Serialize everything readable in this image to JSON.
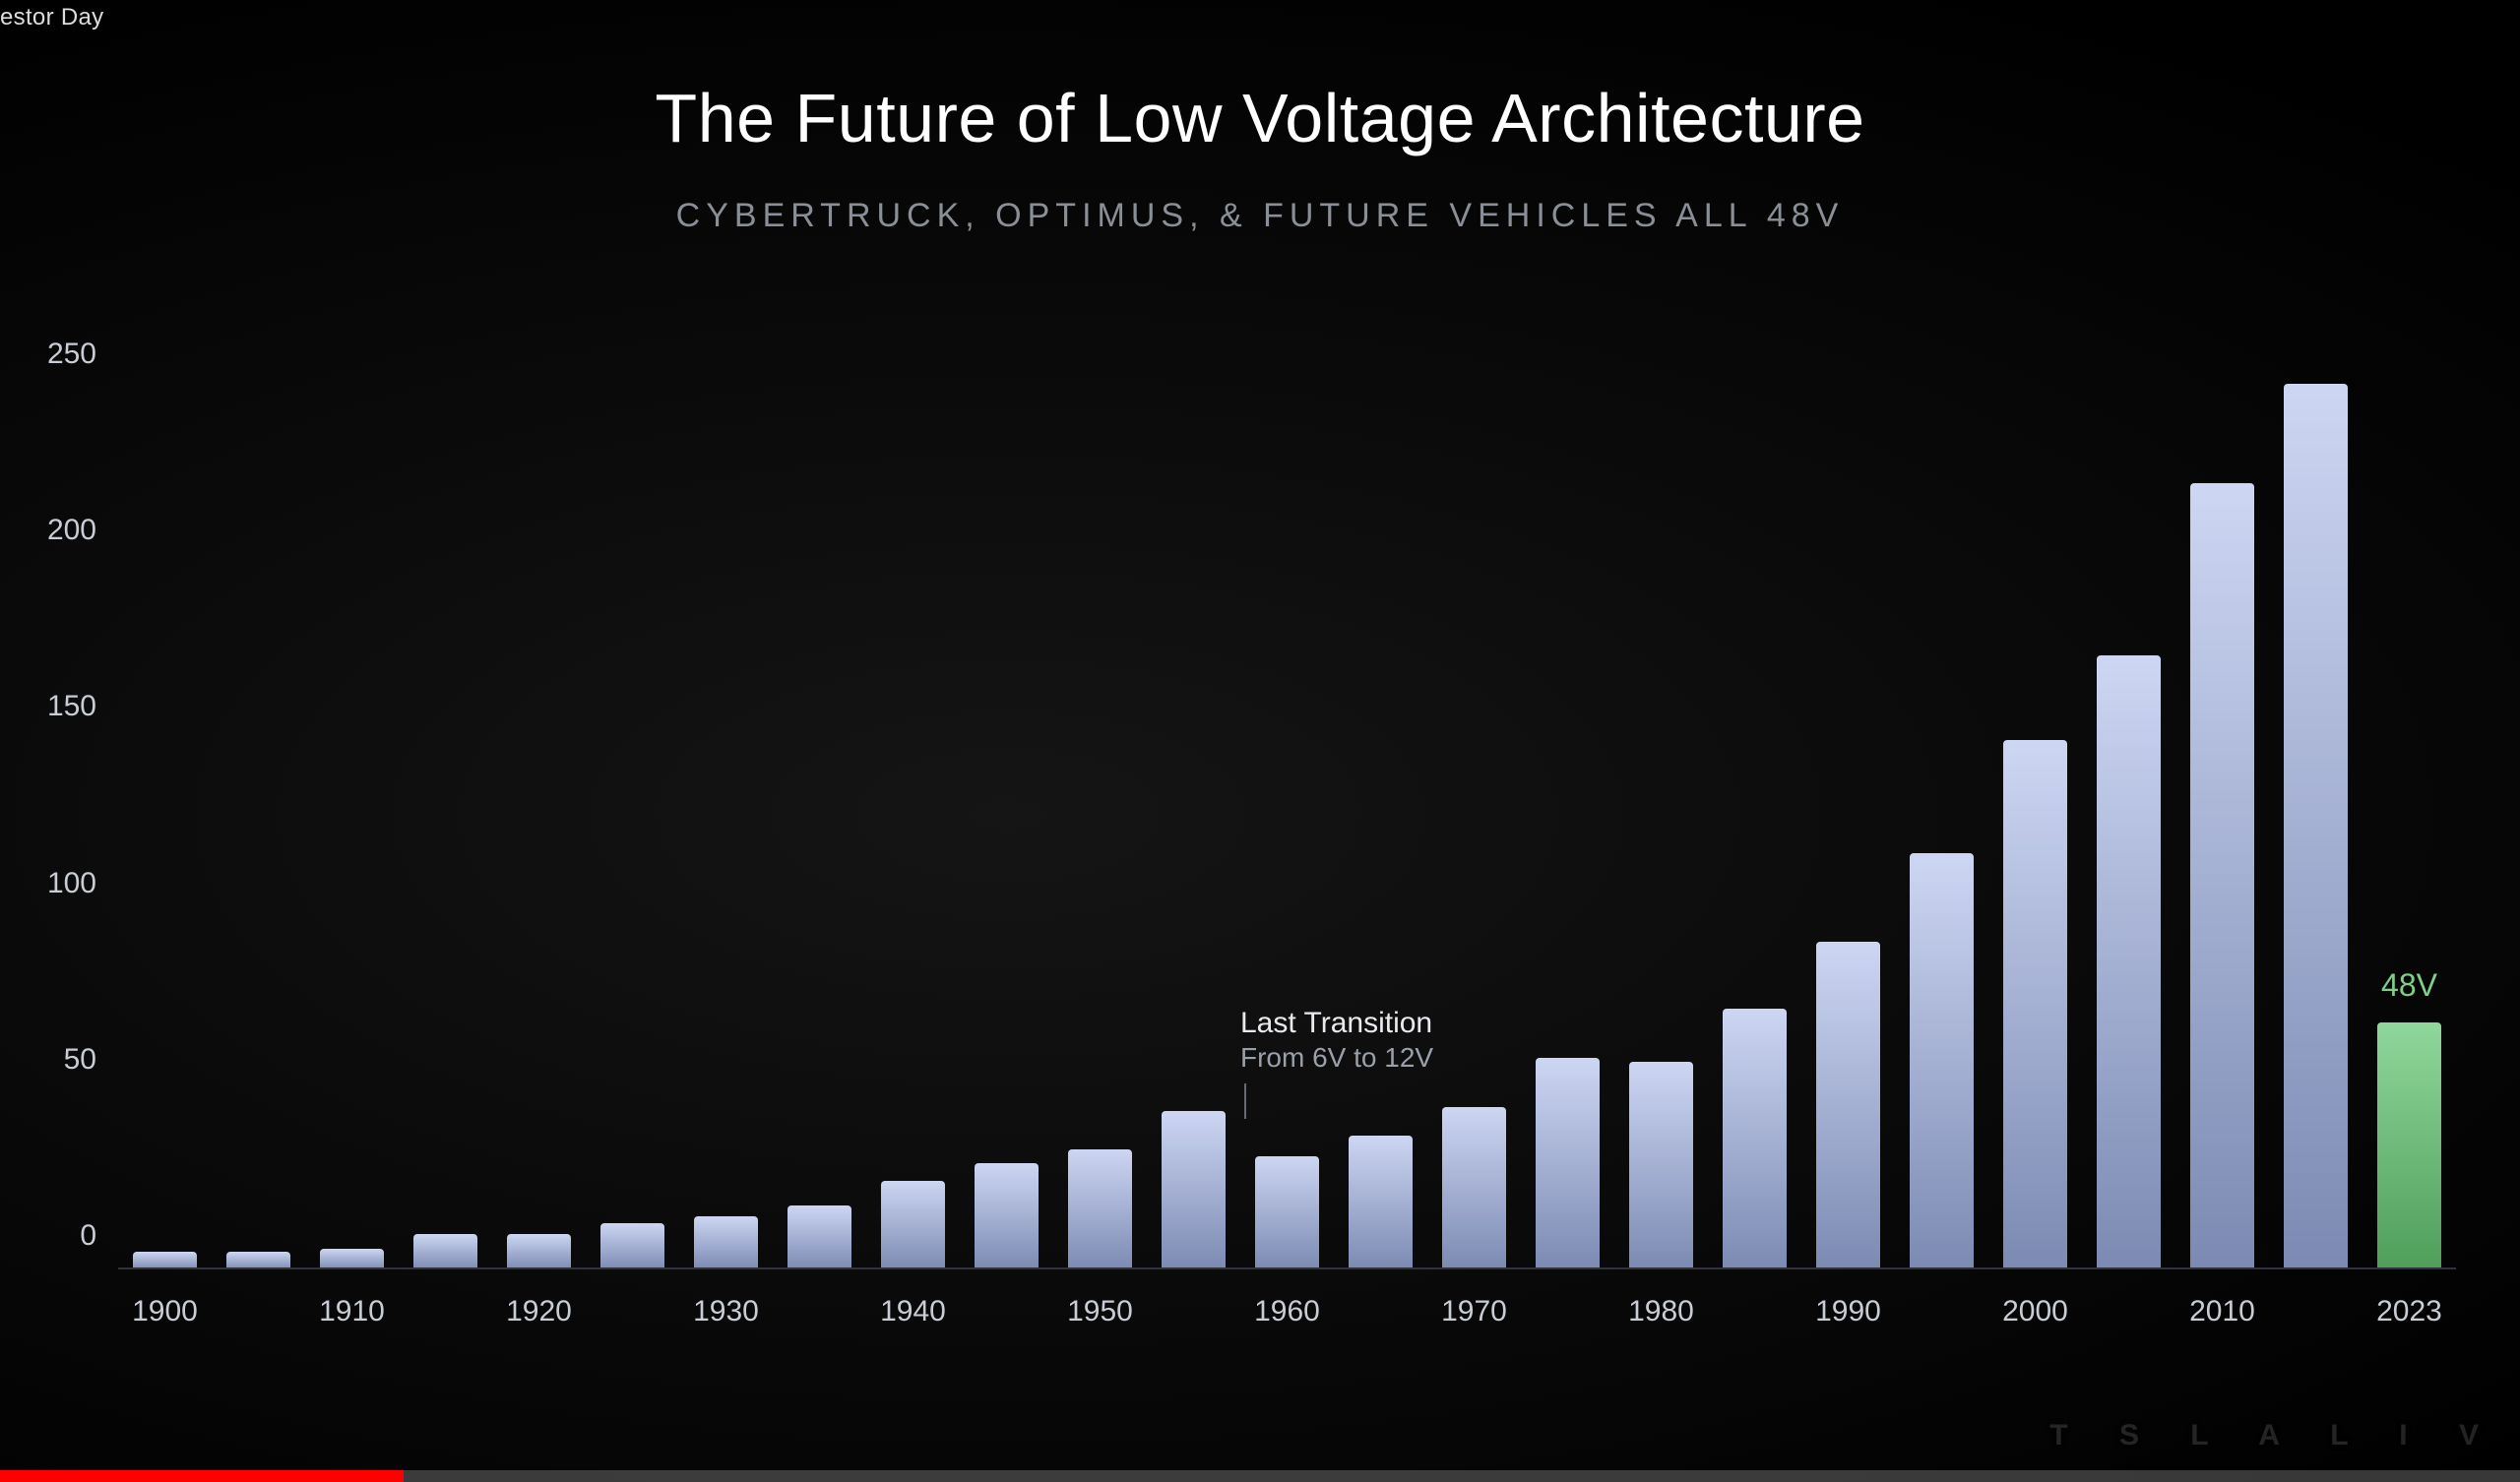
{
  "topbar": {
    "title_fragment": "estor Day"
  },
  "slide": {
    "title": "The Future of Low Voltage Architecture",
    "subtitle": "CYBERTRUCK, OPTIMUS, & FUTURE VEHICLES ALL 48V",
    "title_color": "#ffffff",
    "title_fontsize": 70,
    "subtitle_color": "#8a8f97",
    "subtitle_fontsize": 34,
    "background_color": "#000000"
  },
  "chart": {
    "type": "bar",
    "ylim": [
      0,
      265
    ],
    "yticks": [
      0,
      50,
      100,
      150,
      200,
      250
    ],
    "ytick_color": "#c8cdd5",
    "ytick_fontsize": 30,
    "baseline_color": "#2f3238",
    "bar_gradient_top": "#cdd6f2",
    "bar_gradient_bottom": "#7c8ab3",
    "highlight_gradient_top": "#8fd79a",
    "highlight_gradient_bottom": "#4f9e5a",
    "bar_width_ratio": 0.68,
    "series": [
      {
        "year": "1900",
        "value": 5,
        "highlight": false
      },
      {
        "year": "1905",
        "value": 5,
        "highlight": false
      },
      {
        "year": "1910",
        "value": 6,
        "highlight": false
      },
      {
        "year": "1915",
        "value": 10,
        "highlight": false
      },
      {
        "year": "1920",
        "value": 10,
        "highlight": false
      },
      {
        "year": "1925",
        "value": 13,
        "highlight": false
      },
      {
        "year": "1930",
        "value": 15,
        "highlight": false
      },
      {
        "year": "1935",
        "value": 18,
        "highlight": false
      },
      {
        "year": "1940",
        "value": 25,
        "highlight": false
      },
      {
        "year": "1945",
        "value": 30,
        "highlight": false
      },
      {
        "year": "1950",
        "value": 34,
        "highlight": false
      },
      {
        "year": "1955",
        "value": 45,
        "highlight": false
      },
      {
        "year": "1960",
        "value": 32,
        "highlight": false
      },
      {
        "year": "1965",
        "value": 38,
        "highlight": false
      },
      {
        "year": "1970",
        "value": 46,
        "highlight": false
      },
      {
        "year": "1975",
        "value": 60,
        "highlight": false
      },
      {
        "year": "1980",
        "value": 59,
        "highlight": false
      },
      {
        "year": "1985",
        "value": 74,
        "highlight": false
      },
      {
        "year": "1990",
        "value": 93,
        "highlight": false
      },
      {
        "year": "1995",
        "value": 118,
        "highlight": false
      },
      {
        "year": "2000",
        "value": 150,
        "highlight": false
      },
      {
        "year": "2005",
        "value": 174,
        "highlight": false
      },
      {
        "year": "2010",
        "value": 223,
        "highlight": false
      },
      {
        "year": "2015",
        "value": 251,
        "highlight": false
      },
      {
        "year": "2023",
        "value": 70,
        "highlight": true
      }
    ],
    "xticks": [
      "1900",
      "1910",
      "1920",
      "1930",
      "1940",
      "1950",
      "1960",
      "1970",
      "1980",
      "1990",
      "2000",
      "2010",
      "2023"
    ],
    "xtick_color": "#c8cdd5",
    "xtick_fontsize": 30,
    "annotation": {
      "at_year": "1960",
      "title": "Last Transition",
      "subtitle": "From 6V to 12V",
      "title_color": "#e8eaee",
      "subtitle_color": "#9aa0aa",
      "tick_color": "#666a72"
    },
    "highlight_callout": {
      "at_year": "2023",
      "label": "48V",
      "color": "#7fcf88"
    }
  },
  "player": {
    "progress_pct": 16,
    "track_color": "rgba(255,255,255,0.22)",
    "fill_color": "#ff0000"
  },
  "watermark": {
    "text": "T S L A  L I V"
  }
}
